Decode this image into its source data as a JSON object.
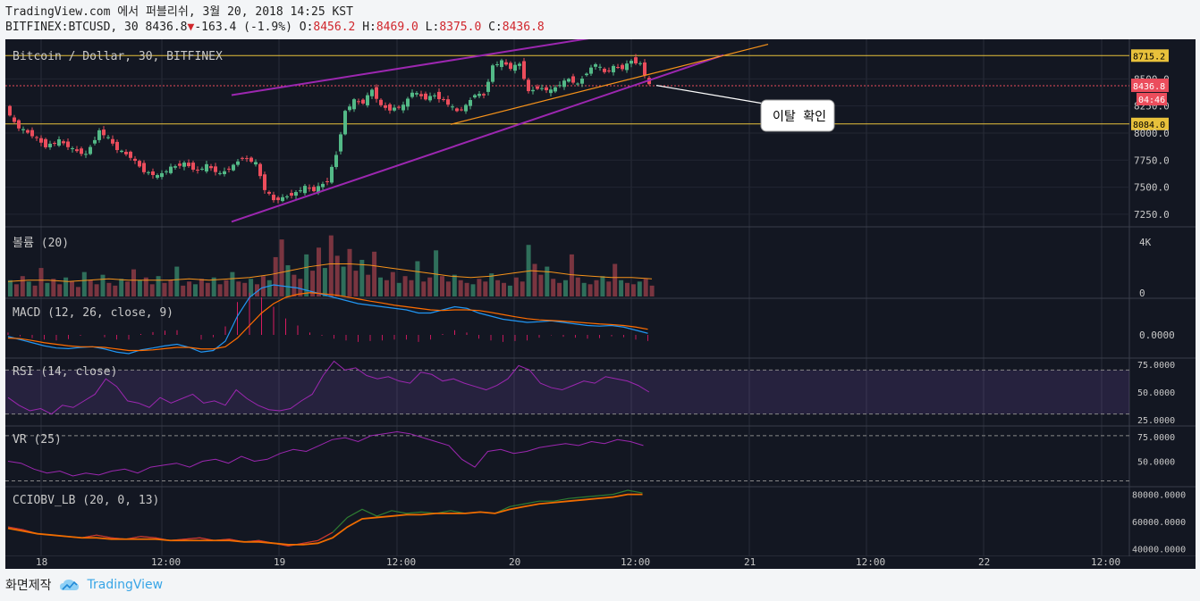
{
  "header": {
    "title": "TradingView.com 에서 퍼블리쉬, 3월 20, 2018 14:25 KST",
    "symbol": "BITFINEX:BTCUSD, 30",
    "last": "8436.8",
    "change": "-163.4 (-1.9%)",
    "o_label": "O:",
    "o_val": "8456.2",
    "h_label": "H:",
    "h_val": "8469.0",
    "l_label": "L:",
    "l_val": "8375.0",
    "c_label": "C:",
    "c_val": "8436.8"
  },
  "footer": {
    "made_with": "화면제작",
    "brand": "TradingView"
  },
  "colors": {
    "bg": "#131722",
    "up": "#53b987",
    "down": "#eb4d5c",
    "channel": "#9c27b0",
    "orange": "#f7931a",
    "hline": "#e8c13b",
    "macd": "#2196f3",
    "signal": "#ff6d00",
    "rsi_band": "#7e57c2"
  },
  "chart_data": [
    {
      "id": "price",
      "type": "candlestick",
      "title": "Bitcoin / Dollar, 30, BITFINEX",
      "x_ticks": [
        "18",
        "12:00",
        "19",
        "12:00",
        "20",
        "12:00",
        "21",
        "12:00",
        "22",
        "12:00"
      ],
      "y_ticks": [
        "8500.0",
        "8250.0",
        "8000.0",
        "7750.0",
        "7500.0",
        "7250.0"
      ],
      "ylim": [
        7150,
        8800
      ],
      "series": [
        {
          "t": 0,
          "c": 8280
        },
        {
          "t": 1,
          "c": 8150
        },
        {
          "t": 3,
          "c": 8050
        },
        {
          "t": 6,
          "c": 7980
        },
        {
          "t": 9,
          "c": 7880
        },
        {
          "t": 12,
          "c": 7930
        },
        {
          "t": 15,
          "c": 7850
        },
        {
          "t": 18,
          "c": 7800
        },
        {
          "t": 21,
          "c": 8020
        },
        {
          "t": 23,
          "c": 7950
        },
        {
          "t": 25,
          "c": 7850
        },
        {
          "t": 28,
          "c": 7780
        },
        {
          "t": 31,
          "c": 7650
        },
        {
          "t": 34,
          "c": 7600
        },
        {
          "t": 37,
          "c": 7680
        },
        {
          "t": 40,
          "c": 7720
        },
        {
          "t": 43,
          "c": 7650
        },
        {
          "t": 45,
          "c": 7700
        },
        {
          "t": 48,
          "c": 7620
        },
        {
          "t": 51,
          "c": 7700
        },
        {
          "t": 53,
          "c": 7780
        },
        {
          "t": 56,
          "c": 7720
        },
        {
          "t": 58,
          "c": 7480
        },
        {
          "t": 60,
          "c": 7380
        },
        {
          "t": 62,
          "c": 7400
        },
        {
          "t": 65,
          "c": 7450
        },
        {
          "t": 67,
          "c": 7500
        },
        {
          "t": 69,
          "c": 7470
        },
        {
          "t": 72,
          "c": 7560
        },
        {
          "t": 74,
          "c": 7800
        },
        {
          "t": 76,
          "c": 8200
        },
        {
          "t": 78,
          "c": 8300
        },
        {
          "t": 80,
          "c": 8280
        },
        {
          "t": 82,
          "c": 8400
        },
        {
          "t": 84,
          "c": 8250
        },
        {
          "t": 86,
          "c": 8220
        },
        {
          "t": 89,
          "c": 8250
        },
        {
          "t": 91,
          "c": 8380
        },
        {
          "t": 94,
          "c": 8320
        },
        {
          "t": 96,
          "c": 8350
        },
        {
          "t": 98,
          "c": 8300
        },
        {
          "t": 101,
          "c": 8200
        },
        {
          "t": 103,
          "c": 8250
        },
        {
          "t": 105,
          "c": 8360
        },
        {
          "t": 107,
          "c": 8350
        },
        {
          "t": 109,
          "c": 8620
        },
        {
          "t": 111,
          "c": 8660
        },
        {
          "t": 113,
          "c": 8600
        },
        {
          "t": 115,
          "c": 8640
        },
        {
          "t": 117,
          "c": 8380
        },
        {
          "t": 119,
          "c": 8420
        },
        {
          "t": 122,
          "c": 8390
        },
        {
          "t": 124,
          "c": 8450
        },
        {
          "t": 126,
          "c": 8500
        },
        {
          "t": 128,
          "c": 8450
        },
        {
          "t": 130,
          "c": 8560
        },
        {
          "t": 132,
          "c": 8640
        },
        {
          "t": 134,
          "c": 8560
        },
        {
          "t": 136,
          "c": 8610
        },
        {
          "t": 138,
          "c": 8600
        },
        {
          "t": 140,
          "c": 8670
        },
        {
          "t": 142,
          "c": 8640
        },
        {
          "t": 144,
          "c": 8440
        }
      ],
      "channel_upper": [
        [
          50,
          8350
        ],
        [
          140,
          8940
        ]
      ],
      "channel_lower": [
        [
          50,
          7180
        ],
        [
          160,
          8720
        ]
      ],
      "orange_line_1": [
        [
          99,
          8080
        ],
        [
          170,
          8820
        ]
      ],
      "orange_line_2": [
        [
          139,
          8480
        ],
        [
          155,
          8620
        ]
      ],
      "hlines": [
        {
          "value": 8715.2,
          "label": "8715.2"
        },
        {
          "value": 8084.0,
          "label": "8084.0"
        }
      ],
      "last_price": {
        "value": 8436.8,
        "label": "8436.8",
        "timer": "04:46"
      },
      "annotation": "이탈 확인"
    },
    {
      "id": "volume",
      "type": "bar",
      "title": "볼륨 (20)",
      "y_ticks": [
        "4K",
        "0"
      ],
      "values": [
        1.2,
        0.9,
        1.5,
        1.1,
        0.8,
        2.1,
        1.0,
        1.3,
        0.9,
        1.4,
        1.1,
        0.7,
        1.8,
        1.2,
        0.9,
        1.6,
        1.0,
        0.8,
        1.3,
        1.1,
        2.0,
        1.2,
        1.4,
        0.9,
        1.5,
        1.0,
        1.2,
        2.2,
        0.8,
        1.1,
        0.9,
        1.3,
        1.0,
        1.4,
        0.9,
        1.2,
        1.8,
        1.1,
        1.0,
        1.3,
        0.9,
        1.5,
        1.2,
        2.9,
        4.2,
        2.3,
        1.6,
        1.3,
        3.1,
        1.9,
        3.6,
        2.1,
        4.5,
        3.0,
        2.2,
        3.5,
        1.9,
        2.7,
        1.6,
        3.3,
        1.4,
        1.2,
        1.8,
        1.0,
        1.5,
        1.2,
        2.6,
        1.1,
        1.4,
        3.4,
        1.5,
        1.1,
        1.6,
        1.2,
        1.0,
        0.9,
        1.3,
        1.1,
        1.7,
        1.2,
        1.0,
        0.8,
        1.4,
        1.1,
        3.8,
        2.4,
        1.6,
        2.2,
        1.3,
        1.0,
        1.2,
        3.1,
        1.4,
        1.0,
        0.9,
        1.2,
        1.5,
        1.1,
        2.4,
        1.2,
        1.0,
        0.9,
        1.1,
        1.3,
        0.8
      ],
      "ma": [
        1.1,
        1.2,
        1.2,
        1.1,
        1.2,
        1.3,
        1.2,
        1.2,
        1.2,
        1.3,
        1.2,
        1.3,
        1.4,
        1.6,
        1.9,
        2.2,
        2.4,
        2.4,
        2.3,
        2.1,
        1.9,
        1.7,
        1.5,
        1.4,
        1.5,
        1.7,
        1.9,
        1.8,
        1.6,
        1.5,
        1.4,
        1.4,
        1.3
      ]
    },
    {
      "id": "macd",
      "type": "line",
      "title": "MACD (12, 26, close, 9)",
      "y_ticks": [
        "0.0000"
      ],
      "macd": [
        -5,
        -15,
        -25,
        -35,
        -42,
        -44,
        -40,
        -38,
        -45,
        -55,
        -60,
        -48,
        -42,
        -35,
        -30,
        -40,
        -55,
        -50,
        -20,
        60,
        120,
        150,
        160,
        155,
        150,
        140,
        130,
        120,
        110,
        100,
        95,
        90,
        85,
        80,
        70,
        70,
        80,
        90,
        85,
        70,
        60,
        50,
        45,
        40,
        42,
        45,
        40,
        35,
        30,
        28,
        30,
        25,
        15,
        5
      ],
      "signal": [
        -10,
        -12,
        -18,
        -25,
        -30,
        -35,
        -38,
        -38,
        -40,
        -45,
        -50,
        -50,
        -48,
        -44,
        -40,
        -40,
        -45,
        -45,
        -38,
        -10,
        30,
        70,
        100,
        120,
        130,
        135,
        132,
        128,
        122,
        115,
        108,
        102,
        95,
        90,
        85,
        80,
        78,
        80,
        80,
        78,
        72,
        65,
        58,
        52,
        48,
        46,
        44,
        41,
        38,
        35,
        33,
        30,
        25,
        18
      ]
    },
    {
      "id": "rsi",
      "type": "line",
      "title": "RSI (14, close)",
      "y_ticks": [
        "75.0000",
        "50.0000",
        "25.0000"
      ],
      "ylim": [
        20,
        80
      ],
      "values": [
        45,
        38,
        33,
        35,
        30,
        38,
        36,
        42,
        48,
        62,
        55,
        42,
        40,
        36,
        45,
        40,
        44,
        48,
        40,
        42,
        38,
        52,
        44,
        38,
        34,
        33,
        35,
        42,
        48,
        65,
        78,
        70,
        72,
        65,
        62,
        64,
        60,
        58,
        68,
        66,
        60,
        62,
        58,
        55,
        52,
        56,
        62,
        74,
        70,
        58,
        54,
        52,
        56,
        60,
        58,
        64,
        62,
        60,
        56,
        50
      ]
    },
    {
      "id": "vr",
      "type": "line",
      "title": "VR (25)",
      "y_ticks": [
        "75.0000",
        "50.0000"
      ],
      "ylim": [
        25,
        85
      ],
      "values": [
        50,
        48,
        42,
        38,
        40,
        35,
        38,
        36,
        40,
        42,
        38,
        44,
        46,
        48,
        44,
        50,
        52,
        48,
        55,
        50,
        52,
        58,
        62,
        60,
        66,
        72,
        74,
        70,
        76,
        78,
        80,
        78,
        74,
        70,
        66,
        52,
        44,
        60,
        62,
        58,
        60,
        64,
        66,
        68,
        66,
        70,
        68,
        72,
        70,
        66
      ]
    },
    {
      "id": "cciobv",
      "type": "line",
      "title": "CCIOBV_LB (20, 0, 13)",
      "y_ticks": [
        "80000.0000",
        "60000.0000",
        "40000.0000"
      ],
      "ylim": [
        35000,
        85000
      ],
      "fast": [
        56000,
        54000,
        51000,
        50000,
        49000,
        48000,
        50000,
        48000,
        47000,
        49000,
        48000,
        46000,
        47000,
        48000,
        46000,
        47000,
        45000,
        46000,
        44000,
        42000,
        44000,
        46000,
        52000,
        63000,
        69000,
        64000,
        68000,
        66000,
        67000,
        66000,
        68000,
        66000,
        67000,
        66000,
        71000,
        73000,
        75000,
        75000,
        77000,
        78000,
        79000,
        80000,
        83000,
        81000
      ],
      "slow": [
        55000,
        53000,
        51000,
        50000,
        49000,
        48000,
        48000,
        47000,
        47000,
        47000,
        47000,
        46000,
        46000,
        46000,
        46000,
        46000,
        45000,
        45000,
        44000,
        43000,
        43000,
        44000,
        48000,
        56000,
        62000,
        63000,
        64000,
        65000,
        65000,
        66000,
        66000,
        66000,
        67000,
        66000,
        69000,
        71000,
        73000,
        74000,
        75000,
        76000,
        77000,
        78000,
        80000,
        80000
      ]
    }
  ]
}
